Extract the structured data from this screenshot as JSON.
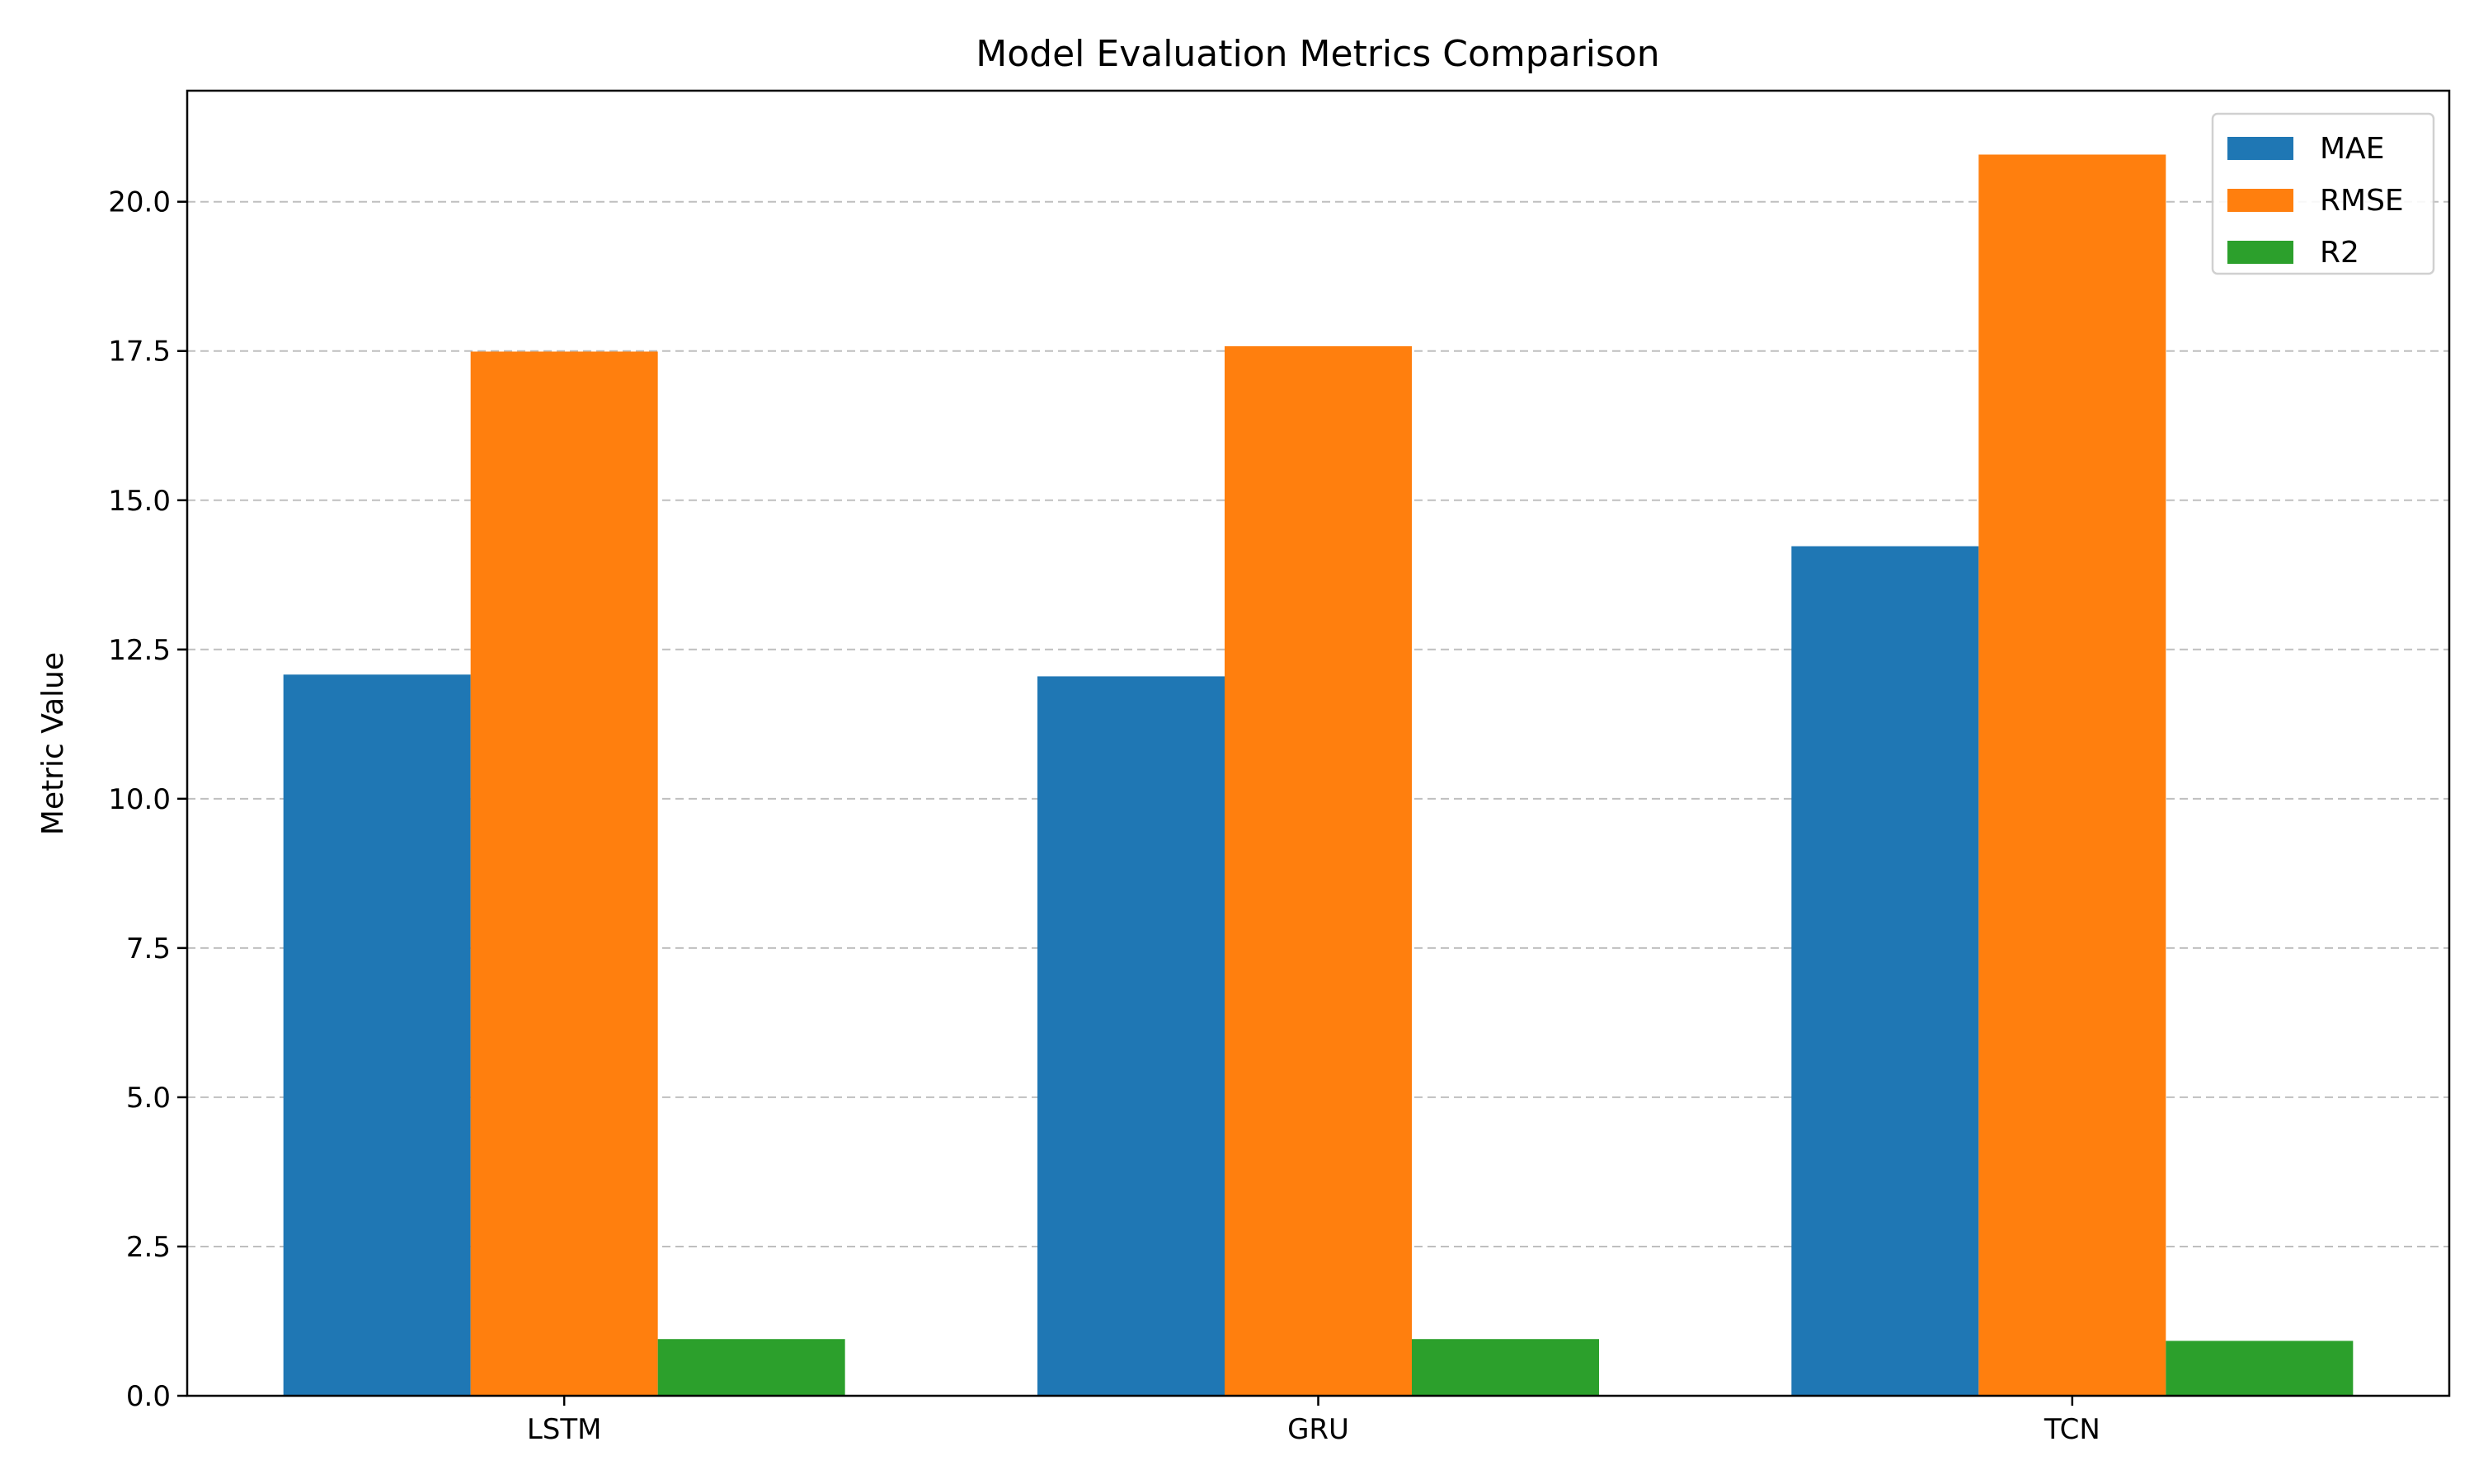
{
  "chart_data": {
    "type": "bar",
    "title": "Model Evaluation Metrics Comparison",
    "xlabel": "",
    "ylabel": "Metric Value",
    "categories": [
      "LSTM",
      "GRU",
      "TCN"
    ],
    "series": [
      {
        "name": "MAE",
        "color": "#1f77b4",
        "values": [
          12.08,
          12.05,
          14.23
        ]
      },
      {
        "name": "RMSE",
        "color": "#ff7f0e",
        "values": [
          17.49,
          17.58,
          20.79
        ]
      },
      {
        "name": "R2",
        "color": "#2ca02c",
        "values": [
          0.95,
          0.95,
          0.92
        ]
      }
    ],
    "ylim": [
      0,
      21.86
    ],
    "yticks": [
      0,
      2.5,
      5,
      7.5,
      10,
      12.5,
      15,
      17.5,
      20
    ],
    "ytick_labels": [
      "0.0",
      "2.5",
      "5.0",
      "7.5",
      "10.0",
      "12.5",
      "15.0",
      "17.5",
      "20.0"
    ],
    "grid": "y-dashed",
    "legend_position": "top-right"
  }
}
